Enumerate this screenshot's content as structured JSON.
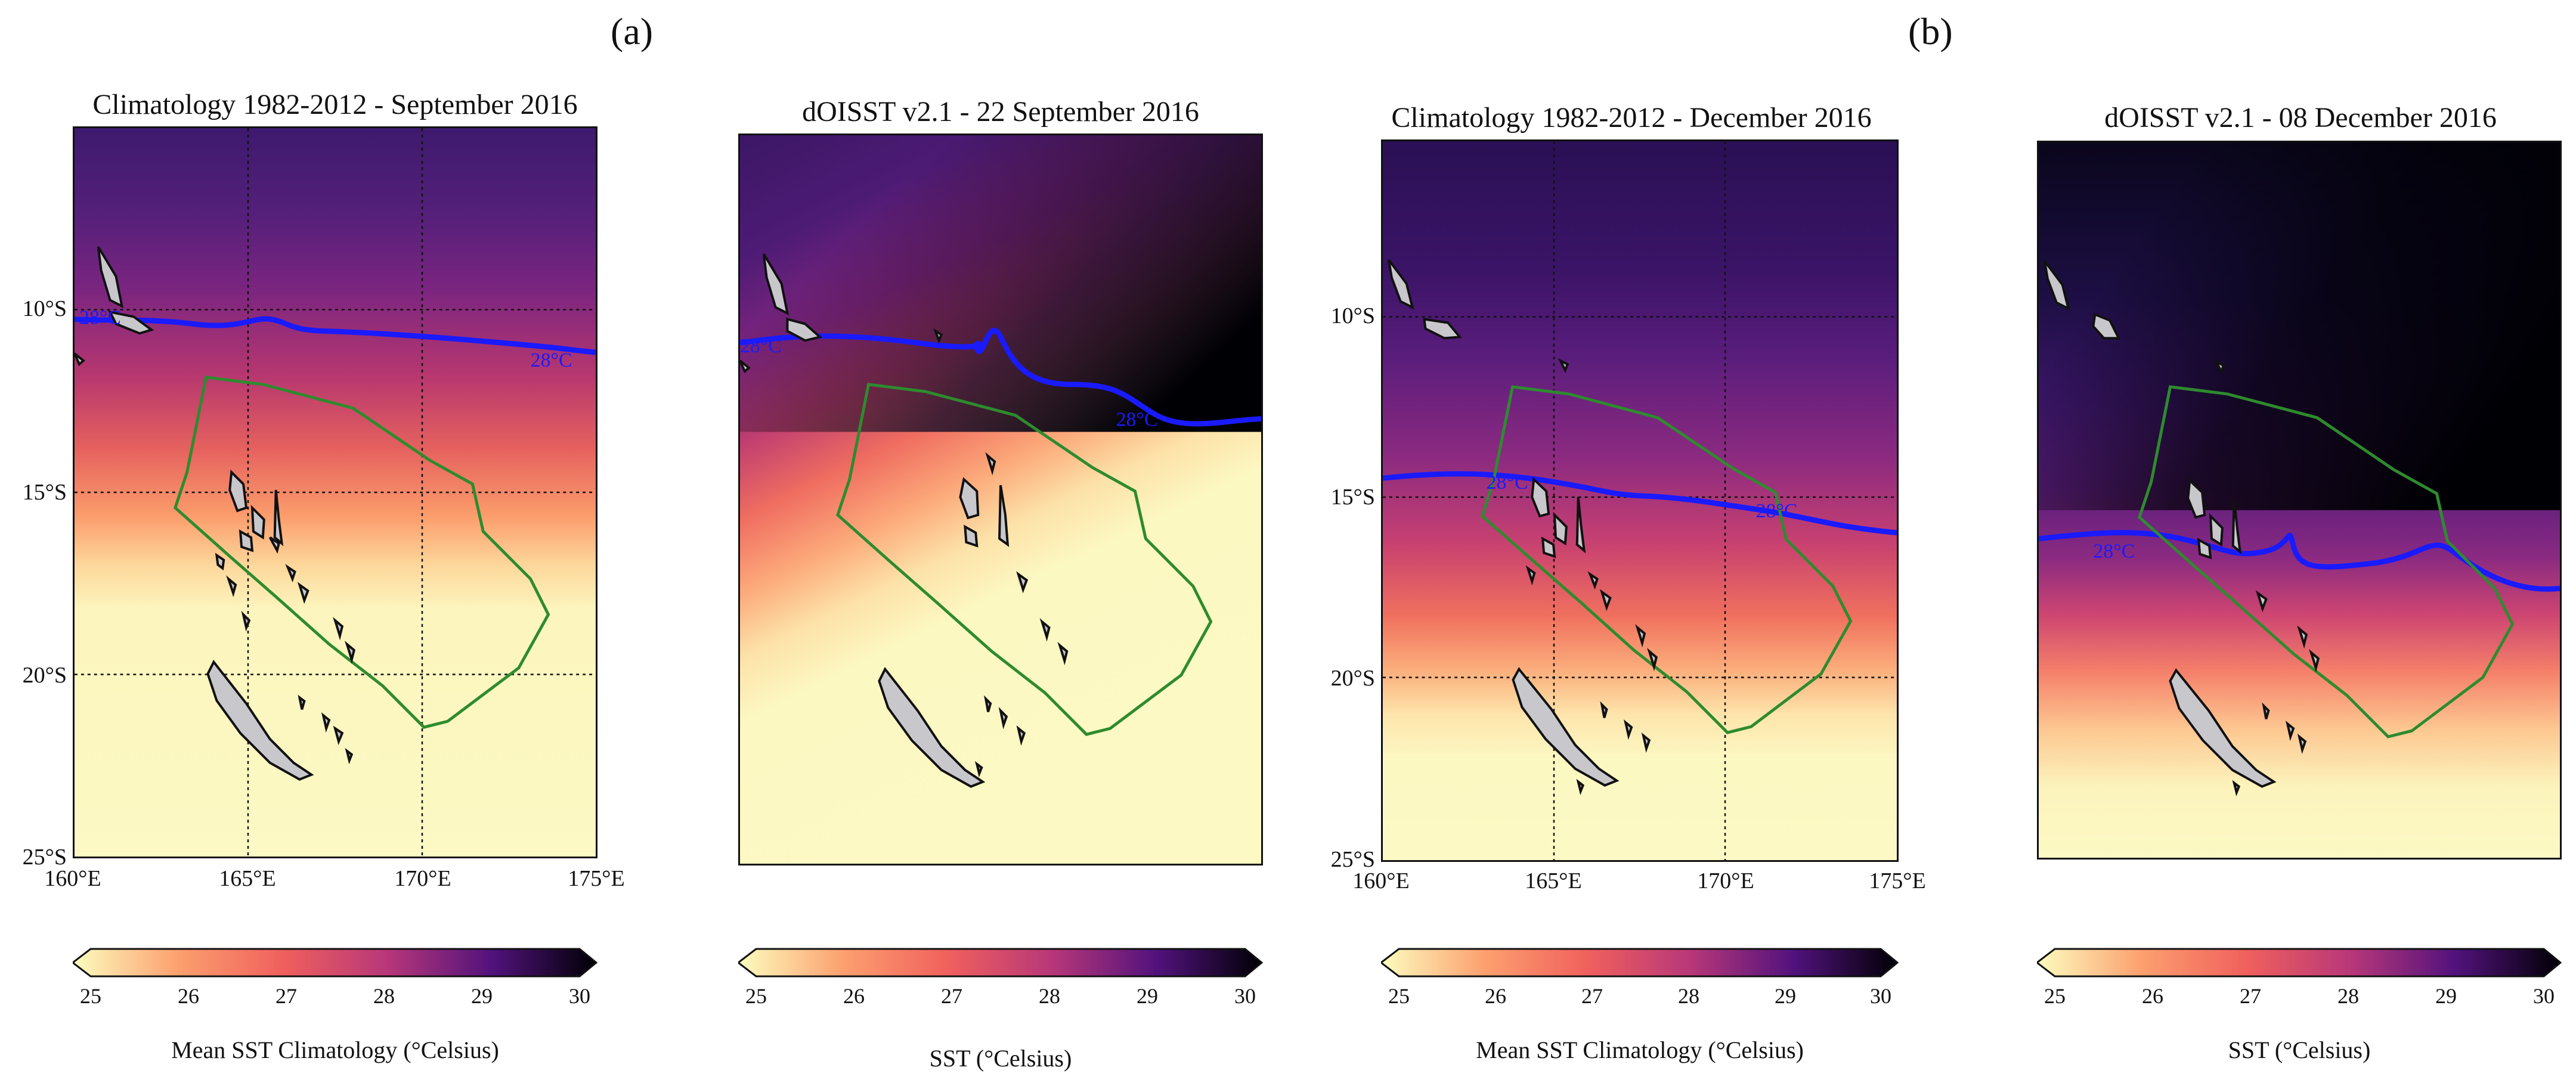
{
  "panel_letters": {
    "a": "(a)",
    "b": "(b)"
  },
  "maps": [
    {
      "title": "Climatology 1982-2012 - September 2016",
      "lat_labels": [
        "10°S",
        "15°S",
        "20°S",
        "25°S"
      ],
      "lon_labels": [
        "160°E",
        "165°E",
        "170°E",
        "175°E"
      ],
      "contour_labels": [
        "28°C",
        "28°C"
      ],
      "colorbar": {
        "ticks": [
          "25",
          "26",
          "27",
          "28",
          "29",
          "30"
        ],
        "label": "Mean SST Climatology (°Celsius)"
      }
    },
    {
      "title": "dOISST v2.1 - 22 September 2016",
      "contour_labels": [
        "28°C",
        "28°C"
      ],
      "colorbar": {
        "ticks": [
          "25",
          "26",
          "27",
          "28",
          "29",
          "30"
        ],
        "label": "SST (°Celsius)"
      }
    },
    {
      "title": "Climatology 1982-2012 - December 2016",
      "lat_labels": [
        "10°S",
        "15°S",
        "20°S",
        "25°S"
      ],
      "lon_labels": [
        "160°E",
        "165°E",
        "170°E",
        "175°E"
      ],
      "contour_labels": [
        "28°C",
        "28°C"
      ],
      "colorbar": {
        "ticks": [
          "25",
          "26",
          "27",
          "28",
          "29",
          "30"
        ],
        "label": "Mean SST Climatology (°Celsius)"
      }
    },
    {
      "title": "dOISST v2.1 - 08 December 2016",
      "contour_labels": [
        "28°C"
      ],
      "colorbar": {
        "ticks": [
          "25",
          "26",
          "27",
          "28",
          "29",
          "30"
        ],
        "label": "SST (°Celsius)"
      }
    }
  ],
  "colors": {
    "contour": "#1a1aff",
    "eez_outline": "#2e8b2e",
    "land": "#c8c8cc",
    "sst_scale": [
      "#fcfdbf",
      "#fca06f",
      "#f0605d",
      "#b73779",
      "#721f81",
      "#2c115f",
      "#000004"
    ]
  }
}
